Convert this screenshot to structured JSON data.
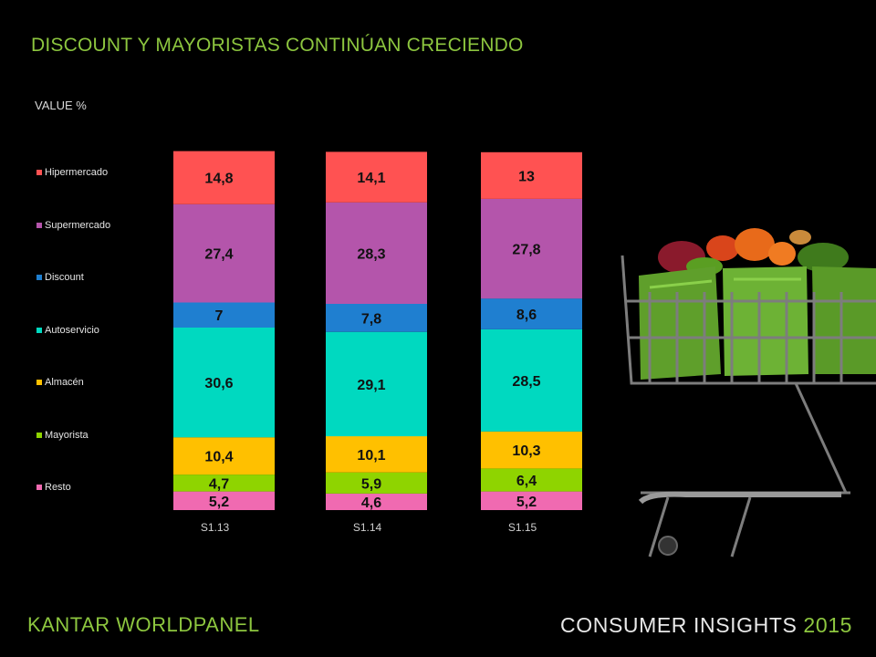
{
  "title": "DISCOUNT  Y MAYORISTAS CONTINÚAN CRECIENDO",
  "chart_data": {
    "type": "bar",
    "stacked": true,
    "categories": [
      "S1.13",
      "S1.14",
      "S1.15"
    ],
    "ylabel": "VALUE %",
    "ylim": [
      0,
      100
    ],
    "legend_position": "left",
    "series": [
      {
        "name": "Resto",
        "color": "#f06ab1",
        "values": [
          5.2,
          4.6,
          5.2
        ],
        "labels": [
          "5,2",
          "4,6",
          "5,2"
        ]
      },
      {
        "name": "Mayorista",
        "color": "#8fd400",
        "values": [
          4.7,
          5.9,
          6.4
        ],
        "labels": [
          "4,7",
          "5,9",
          "6,4"
        ]
      },
      {
        "name": "Almacén",
        "color": "#ffc000",
        "values": [
          10.4,
          10.1,
          10.3
        ],
        "labels": [
          "10,4",
          "10,1",
          "10,3"
        ]
      },
      {
        "name": "Autoservicio",
        "color": "#00d9c0",
        "values": [
          30.6,
          29.1,
          28.5
        ],
        "labels": [
          "30,6",
          "29,1",
          "28,5"
        ]
      },
      {
        "name": "Discount",
        "color": "#1f7fd0",
        "values": [
          7,
          7.8,
          8.6
        ],
        "labels": [
          "7",
          "7,8",
          "8,6"
        ]
      },
      {
        "name": "Supermercado",
        "color": "#b455ab",
        "values": [
          27.4,
          28.3,
          27.8
        ],
        "labels": [
          "27,4",
          "28,3",
          "27,8"
        ]
      },
      {
        "name": "Hipermercado",
        "color": "#ff5252",
        "values": [
          14.8,
          14.1,
          13
        ],
        "labels": [
          "14,8",
          "14,1",
          "13"
        ]
      }
    ],
    "legend_order": [
      "Hipermercado",
      "Supermercado",
      "Discount",
      "Autoservicio",
      "Almacén",
      "Mayorista",
      "Resto"
    ]
  },
  "footer": {
    "brand": "KANTAR WORLDPANEL",
    "event": "CONSUMER INSIGHTS ",
    "year": "2015"
  },
  "image": {
    "icon": "shopping-cart-icon"
  }
}
